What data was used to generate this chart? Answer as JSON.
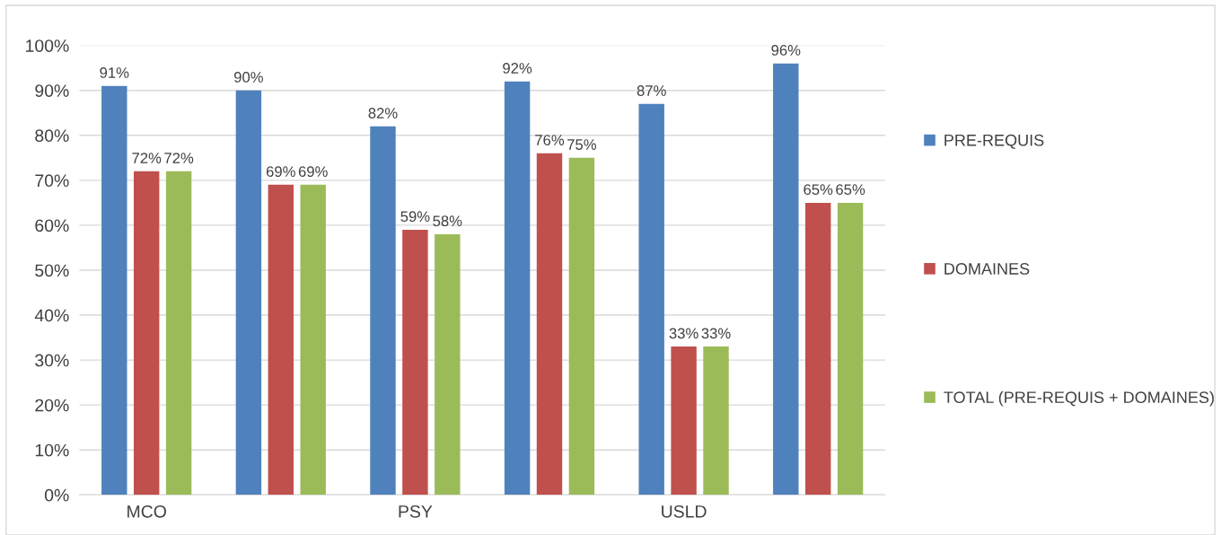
{
  "chart_data": {
    "type": "bar",
    "categories": [
      "MCO",
      null,
      "PSY",
      null,
      "USLD",
      null
    ],
    "series": [
      {
        "name": "PRE-REQUIS",
        "color": "#4f81bd",
        "values": [
          91,
          90,
          82,
          92,
          87,
          96
        ],
        "value_labels": [
          "91%",
          "90%",
          "82%",
          "92%",
          "87%",
          "96%"
        ]
      },
      {
        "name": "DOMAINES",
        "color": "#c0504d",
        "values": [
          72,
          69,
          59,
          76,
          33,
          65
        ],
        "value_labels": [
          "72%",
          "69%",
          "59%",
          "76%",
          "33%",
          "65%"
        ]
      },
      {
        "name": "TOTAL (PRE-REQUIS + DOMAINES)",
        "color": "#9bbb59",
        "values": [
          72,
          69,
          58,
          75,
          33,
          65
        ],
        "value_labels": [
          "72%",
          "69%",
          "58%",
          "75%",
          "33%",
          "65%"
        ]
      }
    ],
    "ylim": [
      0,
      100
    ],
    "yticks": [
      {
        "value": 0,
        "label": "0%"
      },
      {
        "value": 10,
        "label": "10%"
      },
      {
        "value": 20,
        "label": "20%"
      },
      {
        "value": 30,
        "label": "30%"
      },
      {
        "value": 40,
        "label": "40%"
      },
      {
        "value": 50,
        "label": "50%"
      },
      {
        "value": 60,
        "label": "60%"
      },
      {
        "value": 70,
        "label": "70%"
      },
      {
        "value": 80,
        "label": "80%"
      },
      {
        "value": 90,
        "label": "90%"
      },
      {
        "value": 100,
        "label": "100%"
      }
    ],
    "grid": "y",
    "legend": "right"
  }
}
